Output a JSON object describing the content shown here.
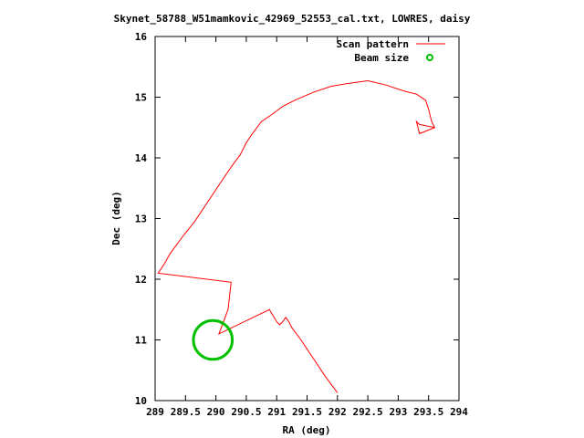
{
  "chart_data": {
    "type": "line",
    "title": "Skynet_58788_W51mamkovic_42969_52553_cal.txt, LOWRES, daisy",
    "xlabel": "RA (deg)",
    "ylabel": "Dec (deg)",
    "xlim": [
      289,
      294
    ],
    "ylim": [
      10,
      16
    ],
    "x_ticks": [
      289,
      289.5,
      290,
      290.5,
      291,
      291.5,
      292,
      292.5,
      293,
      293.5,
      294
    ],
    "x_tick_labels": [
      "289",
      "289.5",
      "290",
      "290.5",
      "291",
      "291.5",
      "292",
      "292.5",
      "293",
      "293.5",
      "294"
    ],
    "y_ticks": [
      10,
      11,
      12,
      13,
      14,
      15,
      16
    ],
    "y_tick_labels": [
      "10",
      "11",
      "12",
      "13",
      "14",
      "15",
      "16"
    ],
    "grid": false,
    "legend_position": "top-right",
    "series": [
      {
        "name": "Scan pattern",
        "color": "#ff0000",
        "x": [
          292.0,
          291.8,
          291.6,
          291.4,
          291.25,
          291.2,
          291.15,
          291.1,
          291.05,
          291.0,
          290.88,
          290.05,
          290.2,
          290.25,
          289.05,
          289.15,
          289.25,
          289.45,
          289.65,
          289.85,
          290.05,
          290.25,
          290.4,
          290.5,
          290.6,
          290.75,
          290.9,
          291.1,
          291.3,
          291.6,
          291.9,
          292.2,
          292.5,
          292.8,
          293.1,
          293.3,
          293.45,
          293.5,
          293.55,
          293.6,
          293.35,
          293.3,
          293.35,
          293.6
        ],
        "y": [
          10.13,
          10.4,
          10.7,
          11.0,
          11.2,
          11.3,
          11.37,
          11.3,
          11.25,
          11.3,
          11.5,
          11.1,
          11.5,
          11.95,
          12.1,
          12.25,
          12.43,
          12.7,
          12.95,
          13.25,
          13.55,
          13.85,
          14.05,
          14.25,
          14.4,
          14.6,
          14.7,
          14.85,
          14.95,
          15.08,
          15.18,
          15.23,
          15.27,
          15.2,
          15.1,
          15.05,
          14.95,
          14.8,
          14.6,
          14.5,
          14.4,
          14.6,
          14.55,
          14.5
        ]
      },
      {
        "name": "Beam size",
        "color": "#00c000",
        "center": [
          289.95,
          11.0
        ],
        "radius_deg": 0.32
      }
    ]
  }
}
